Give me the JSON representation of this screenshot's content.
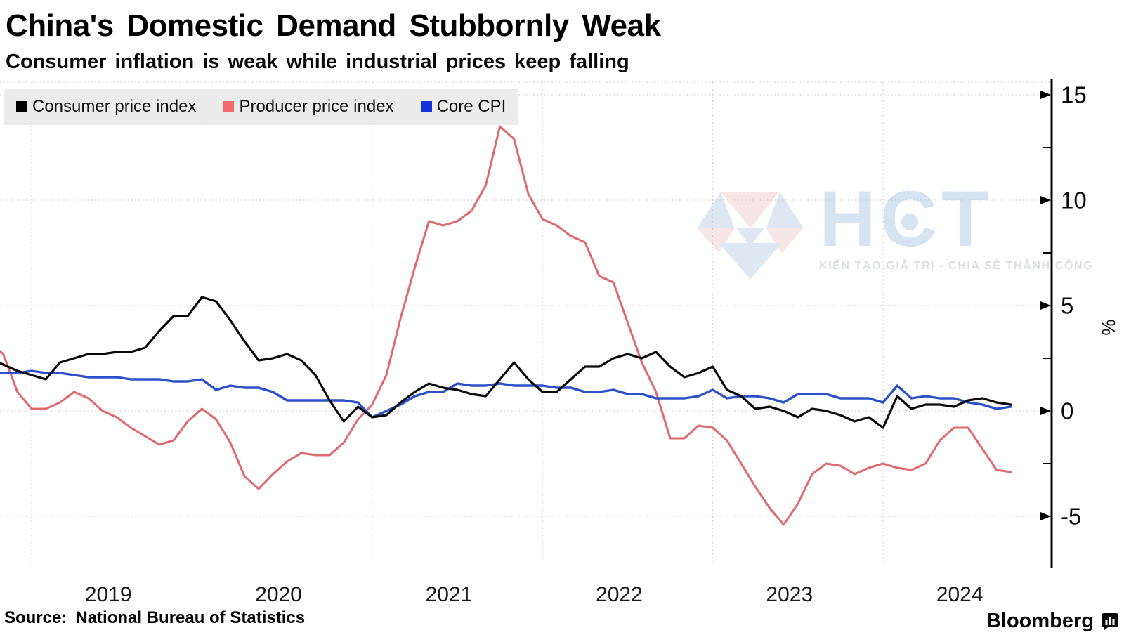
{
  "header": {
    "title": "China's Domestic Demand Stubbornly Weak",
    "subtitle": "Consumer inflation is weak while industrial prices keep falling"
  },
  "legend": {
    "items": [
      {
        "label": "Consumer price index",
        "color": "#000000"
      },
      {
        "label": "Producer price index",
        "color": "#f4696d"
      },
      {
        "label": "Core CPI",
        "color": "#1434dd"
      }
    ]
  },
  "watermark": {
    "letters": [
      "H",
      "C",
      "T"
    ],
    "tagline": "KIẾN TẠO GIÁ TRỊ - CHIA SẺ THÀNH CÔNG",
    "gem_blue": "#c9daec",
    "gem_pink": "#f3d6d6"
  },
  "footer": {
    "source_label": "Source:",
    "source_text": "National Bureau of Statistics",
    "brand": "Bloomberg"
  },
  "chart_data": {
    "type": "line",
    "title": "China's Domestic Demand Stubbornly Weak",
    "subtitle": "Consumer inflation is weak while industrial prices keep falling",
    "frequency": "monthly",
    "x_start": "2018-10",
    "x_end": "2024-10",
    "x_tick_labels": [
      "2019",
      "2020",
      "2021",
      "2022",
      "2023",
      "2024"
    ],
    "y_ticks_major": [
      15,
      10,
      5,
      0,
      -5
    ],
    "y_ticks_minor": [
      12.5,
      7.5,
      2.5,
      -2.5
    ],
    "ylabel": "%",
    "ylim": [
      -7.3,
      15.7
    ],
    "grid": true,
    "legend_position": "top-left",
    "axis_side": "right",
    "grid_color": "#c6c6c6",
    "series": [
      {
        "name": "Consumer price index",
        "color": "#0a0a0a",
        "width": 3.2,
        "values": [
          2.5,
          2.2,
          1.9,
          1.7,
          1.5,
          2.3,
          2.5,
          2.7,
          2.7,
          2.8,
          2.8,
          3.0,
          3.8,
          4.5,
          4.5,
          5.4,
          5.2,
          4.3,
          3.3,
          2.4,
          2.5,
          2.7,
          2.4,
          1.7,
          0.5,
          -0.5,
          0.2,
          -0.3,
          -0.2,
          0.4,
          0.9,
          1.3,
          1.1,
          1.0,
          0.8,
          0.7,
          1.5,
          2.3,
          1.5,
          0.9,
          0.9,
          1.5,
          2.1,
          2.1,
          2.5,
          2.7,
          2.5,
          2.8,
          2.1,
          1.6,
          1.8,
          2.1,
          1.0,
          0.7,
          0.1,
          0.2,
          0.0,
          -0.3,
          0.1,
          0.0,
          -0.2,
          -0.5,
          -0.3,
          -0.8,
          0.7,
          0.1,
          0.3,
          0.3,
          0.2,
          0.5,
          0.6,
          0.4,
          0.3
        ]
      },
      {
        "name": "Producer price index",
        "color": "#e0696e",
        "width": 3.0,
        "values": [
          3.3,
          2.7,
          0.9,
          0.1,
          0.1,
          0.4,
          0.9,
          0.6,
          0.0,
          -0.3,
          -0.8,
          -1.2,
          -1.6,
          -1.4,
          -0.5,
          0.1,
          -0.4,
          -1.5,
          -3.1,
          -3.7,
          -3.0,
          -2.4,
          -2.0,
          -2.1,
          -2.1,
          -1.5,
          -0.4,
          0.3,
          1.7,
          4.4,
          6.8,
          9.0,
          8.8,
          9.0,
          9.5,
          10.7,
          13.5,
          12.9,
          10.3,
          9.1,
          8.8,
          8.3,
          8.0,
          6.4,
          6.1,
          4.2,
          2.3,
          0.9,
          -1.3,
          -1.3,
          -0.7,
          -0.8,
          -1.4,
          -2.5,
          -3.6,
          -4.6,
          -5.4,
          -4.4,
          -3.0,
          -2.5,
          -2.6,
          -3.0,
          -2.7,
          -2.5,
          -2.7,
          -2.8,
          -2.5,
          -1.4,
          -0.8,
          -0.8,
          -1.8,
          -2.8,
          -2.9
        ]
      },
      {
        "name": "Core CPI",
        "color": "#2b50c8",
        "width": 3.4,
        "values": [
          1.8,
          1.8,
          1.8,
          1.9,
          1.8,
          1.8,
          1.7,
          1.6,
          1.6,
          1.6,
          1.5,
          1.5,
          1.5,
          1.4,
          1.4,
          1.5,
          1.0,
          1.2,
          1.1,
          1.1,
          0.9,
          0.5,
          0.5,
          0.5,
          0.5,
          0.5,
          0.4,
          -0.3,
          0.0,
          0.3,
          0.7,
          0.9,
          0.9,
          1.3,
          1.2,
          1.2,
          1.3,
          1.2,
          1.2,
          1.2,
          1.1,
          1.1,
          0.9,
          0.9,
          1.0,
          0.8,
          0.8,
          0.6,
          0.6,
          0.6,
          0.7,
          1.0,
          0.6,
          0.7,
          0.7,
          0.6,
          0.4,
          0.8,
          0.8,
          0.8,
          0.6,
          0.6,
          0.6,
          0.4,
          1.2,
          0.6,
          0.7,
          0.6,
          0.6,
          0.4,
          0.3,
          0.1,
          0.2
        ]
      }
    ]
  }
}
